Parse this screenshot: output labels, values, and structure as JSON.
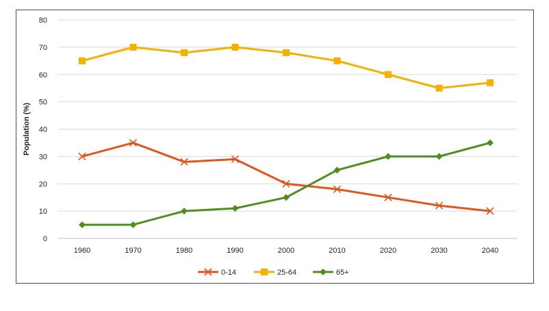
{
  "chart_data": {
    "type": "line",
    "ylabel": "Population (%)",
    "xlabel": "",
    "ylim": [
      0,
      80
    ],
    "yticks": [
      0,
      10,
      20,
      30,
      40,
      50,
      60,
      70,
      80
    ],
    "y_tick_labels": [
      "0",
      "10",
      "20",
      "30",
      "40",
      "50",
      "60",
      "70",
      "80"
    ],
    "categories": [
      "1960",
      "1970",
      "1980",
      "1990",
      "2000",
      "2010",
      "2020",
      "2030",
      "2040"
    ],
    "grid": true,
    "legend_position": "bottom",
    "series": [
      {
        "name": "0-14",
        "color": "#e2541b",
        "marker": "x",
        "values": [
          30,
          35,
          28,
          29,
          20,
          18,
          15,
          12,
          10
        ]
      },
      {
        "name": "25-64",
        "color": "#f5b000",
        "marker": "square",
        "values": [
          65,
          70,
          68,
          70,
          68,
          65,
          60,
          55,
          57
        ]
      },
      {
        "name": "65+",
        "color": "#4e8f1f",
        "marker": "diamond",
        "values": [
          5,
          5,
          10,
          11,
          15,
          25,
          30,
          30,
          35
        ]
      }
    ]
  }
}
